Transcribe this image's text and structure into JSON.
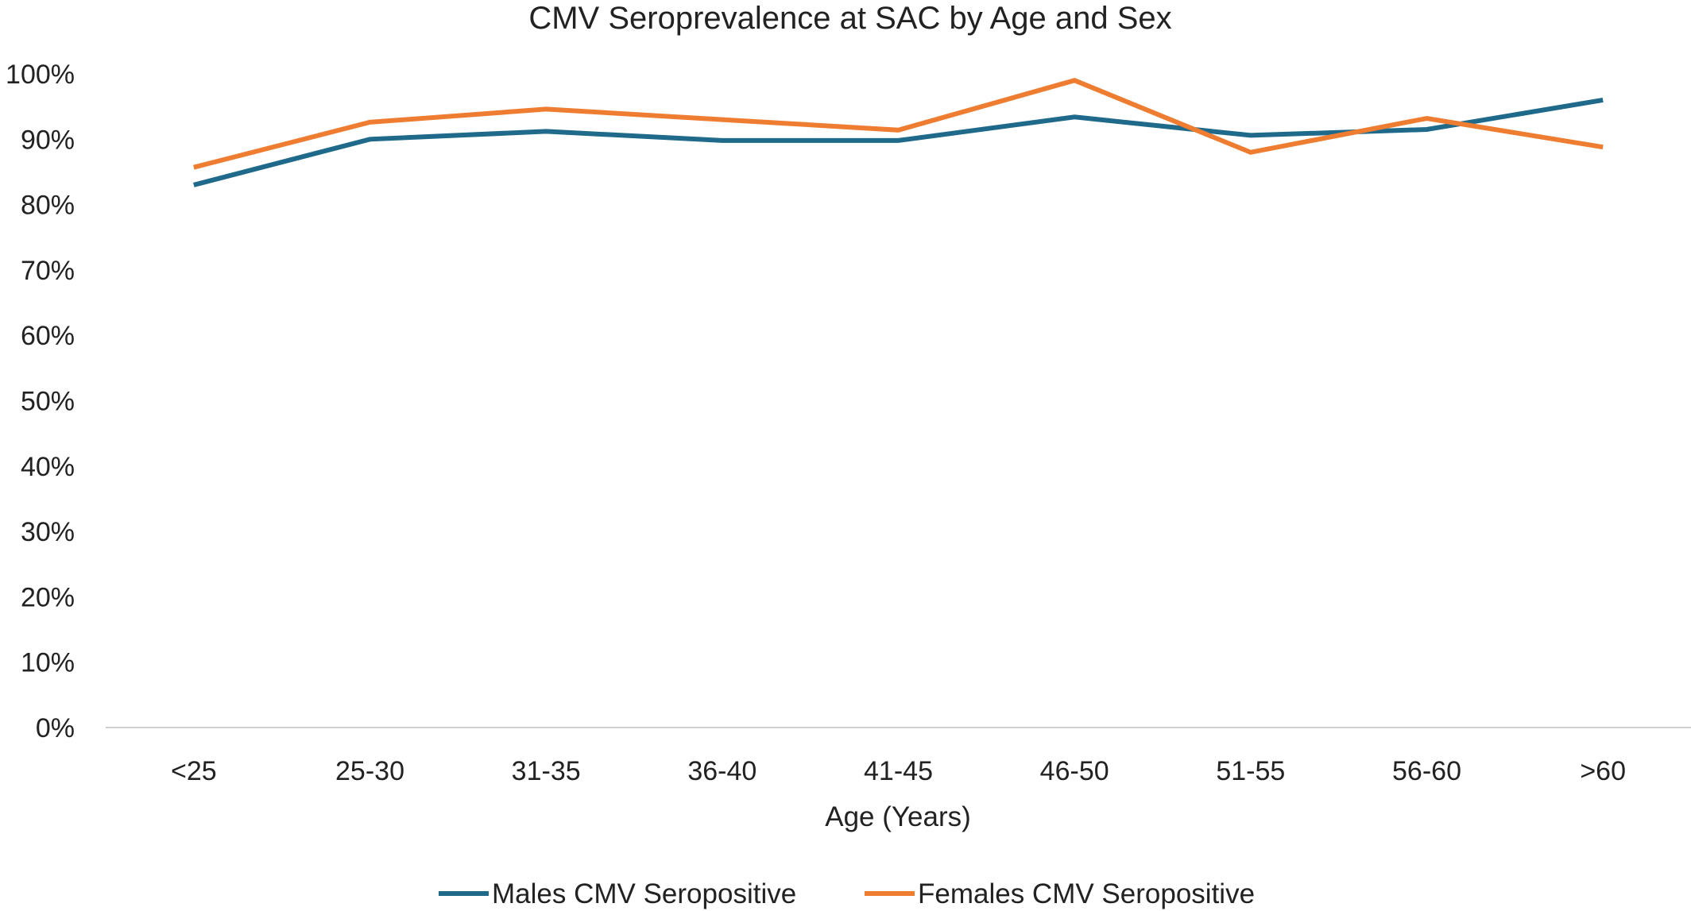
{
  "chart_data": {
    "type": "line",
    "title": "CMV Seroprevalence at SAC by Age and Sex",
    "xlabel": "Age (Years)",
    "ylabel": "",
    "categories": [
      "<25",
      "25-30",
      "31-35",
      "36-40",
      "41-45",
      "46-50",
      "51-55",
      "56-60",
      ">60"
    ],
    "y_ticks": [
      "0%",
      "10%",
      "20%",
      "30%",
      "40%",
      "50%",
      "60%",
      "70%",
      "80%",
      "90%",
      "100%"
    ],
    "ylim": [
      0,
      100
    ],
    "grid": false,
    "legend_position": "bottom",
    "series": [
      {
        "name": "Males CMV Seropositive",
        "color": "#1f6a8a",
        "values": [
          83,
          90,
          91.2,
          89.8,
          89.8,
          93.4,
          90.6,
          91.5,
          96
        ]
      },
      {
        "name": "Females CMV Seropositive",
        "color": "#ee7d32",
        "values": [
          85.7,
          92.6,
          94.6,
          93,
          91.4,
          99,
          88,
          93.2,
          88.8
        ]
      }
    ]
  }
}
